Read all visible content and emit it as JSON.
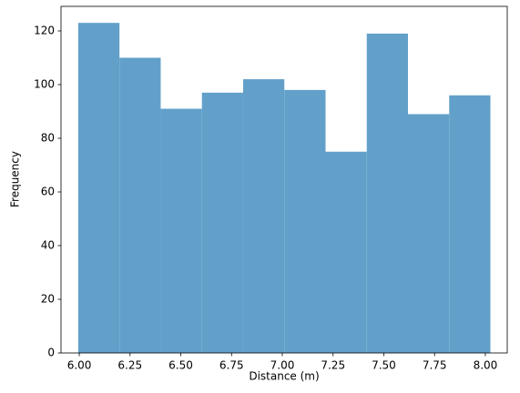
{
  "chart_data": {
    "type": "histogram",
    "x_label": "Distance (m)",
    "y_label": "Frequency",
    "bins": [
      5.995,
      6.198,
      6.401,
      6.604,
      6.807,
      7.01,
      7.213,
      7.416,
      7.619,
      7.822,
      8.025
    ],
    "values": [
      123,
      110,
      91,
      97,
      102,
      98,
      75,
      119,
      89,
      96
    ],
    "color": "#62a0ca",
    "xlim": [
      5.91,
      8.108
    ],
    "ylim": [
      0,
      129.15
    ],
    "xticks": [
      {
        "value": 6,
        "label": "6.00"
      },
      {
        "value": 6.25,
        "label": "6.25"
      },
      {
        "value": 6.5,
        "label": "6.50"
      },
      {
        "value": 6.75,
        "label": "6.75"
      },
      {
        "value": 7,
        "label": "7.00"
      },
      {
        "value": 7.25,
        "label": "7.25"
      },
      {
        "value": 7.5,
        "label": "7.50"
      },
      {
        "value": 7.75,
        "label": "7.75"
      },
      {
        "value": 8,
        "label": "8.00"
      }
    ],
    "yticks": [
      0,
      20,
      40,
      60,
      80,
      100,
      120
    ],
    "grid": false
  }
}
